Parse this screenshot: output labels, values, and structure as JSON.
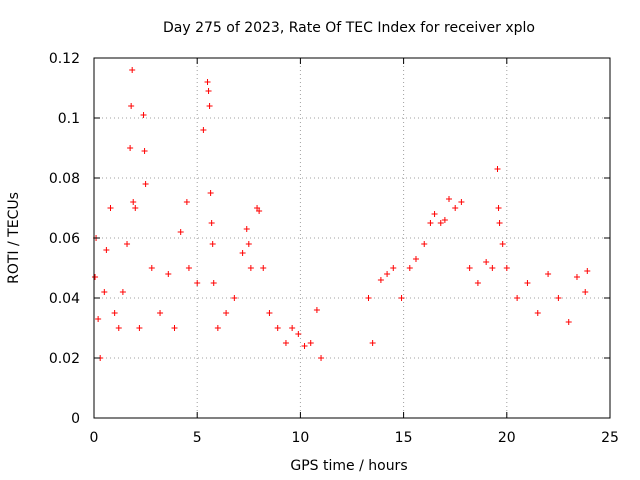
{
  "chart_data": {
    "type": "scatter",
    "title": "Day 275 of 2023, Rate Of TEC Index for receiver xplo",
    "xlabel": "GPS time / hours",
    "ylabel": "ROTI / TECUs",
    "xlim": [
      0,
      25
    ],
    "ylim": [
      0,
      0.12
    ],
    "xticks": [
      "0",
      "5",
      "10",
      "15",
      "20",
      "25"
    ],
    "yticks": [
      "0",
      "0.02",
      "0.04",
      "0.06",
      "0.08",
      "0.1",
      "0.12"
    ],
    "grid": true,
    "marker": "+",
    "color": "#ff0000",
    "series": [
      {
        "name": "",
        "x": [
          0.05,
          0.1,
          0.2,
          0.3,
          0.5,
          0.6,
          0.8,
          1.0,
          1.2,
          1.4,
          1.6,
          1.75,
          1.8,
          1.85,
          1.9,
          2.0,
          2.2,
          2.4,
          2.45,
          2.5,
          2.8,
          3.2,
          3.6,
          3.9,
          4.2,
          4.5,
          4.6,
          5.0,
          5.3,
          5.5,
          5.55,
          5.6,
          5.65,
          5.7,
          5.75,
          5.8,
          6.0,
          6.4,
          6.8,
          7.2,
          7.4,
          7.5,
          7.6,
          7.9,
          8.0,
          8.2,
          8.5,
          8.9,
          9.3,
          9.6,
          9.9,
          10.2,
          10.5,
          10.8,
          11.0,
          13.3,
          13.5,
          13.9,
          14.2,
          14.5,
          14.9,
          15.3,
          15.6,
          16.0,
          16.3,
          16.5,
          16.8,
          17.0,
          17.2,
          17.5,
          17.8,
          18.2,
          18.6,
          19.0,
          19.3,
          19.55,
          19.6,
          19.65,
          19.8,
          20.0,
          20.5,
          21.0,
          21.5,
          22.0,
          22.5,
          23.0,
          23.4,
          23.8,
          23.9
        ],
        "y": [
          0.047,
          0.06,
          0.033,
          0.02,
          0.042,
          0.056,
          0.07,
          0.035,
          0.03,
          0.042,
          0.058,
          0.09,
          0.104,
          0.116,
          0.072,
          0.07,
          0.03,
          0.101,
          0.089,
          0.078,
          0.05,
          0.035,
          0.048,
          0.03,
          0.062,
          0.072,
          0.05,
          0.045,
          0.096,
          0.112,
          0.109,
          0.104,
          0.075,
          0.065,
          0.058,
          0.045,
          0.03,
          0.035,
          0.04,
          0.055,
          0.063,
          0.058,
          0.05,
          0.07,
          0.069,
          0.05,
          0.035,
          0.03,
          0.025,
          0.03,
          0.028,
          0.024,
          0.025,
          0.036,
          0.02,
          0.04,
          0.025,
          0.046,
          0.048,
          0.05,
          0.04,
          0.05,
          0.053,
          0.058,
          0.065,
          0.068,
          0.065,
          0.066,
          0.073,
          0.07,
          0.072,
          0.05,
          0.045,
          0.052,
          0.05,
          0.083,
          0.07,
          0.065,
          0.058,
          0.05,
          0.04,
          0.045,
          0.035,
          0.048,
          0.04,
          0.032,
          0.047,
          0.042,
          0.049
        ]
      }
    ]
  }
}
